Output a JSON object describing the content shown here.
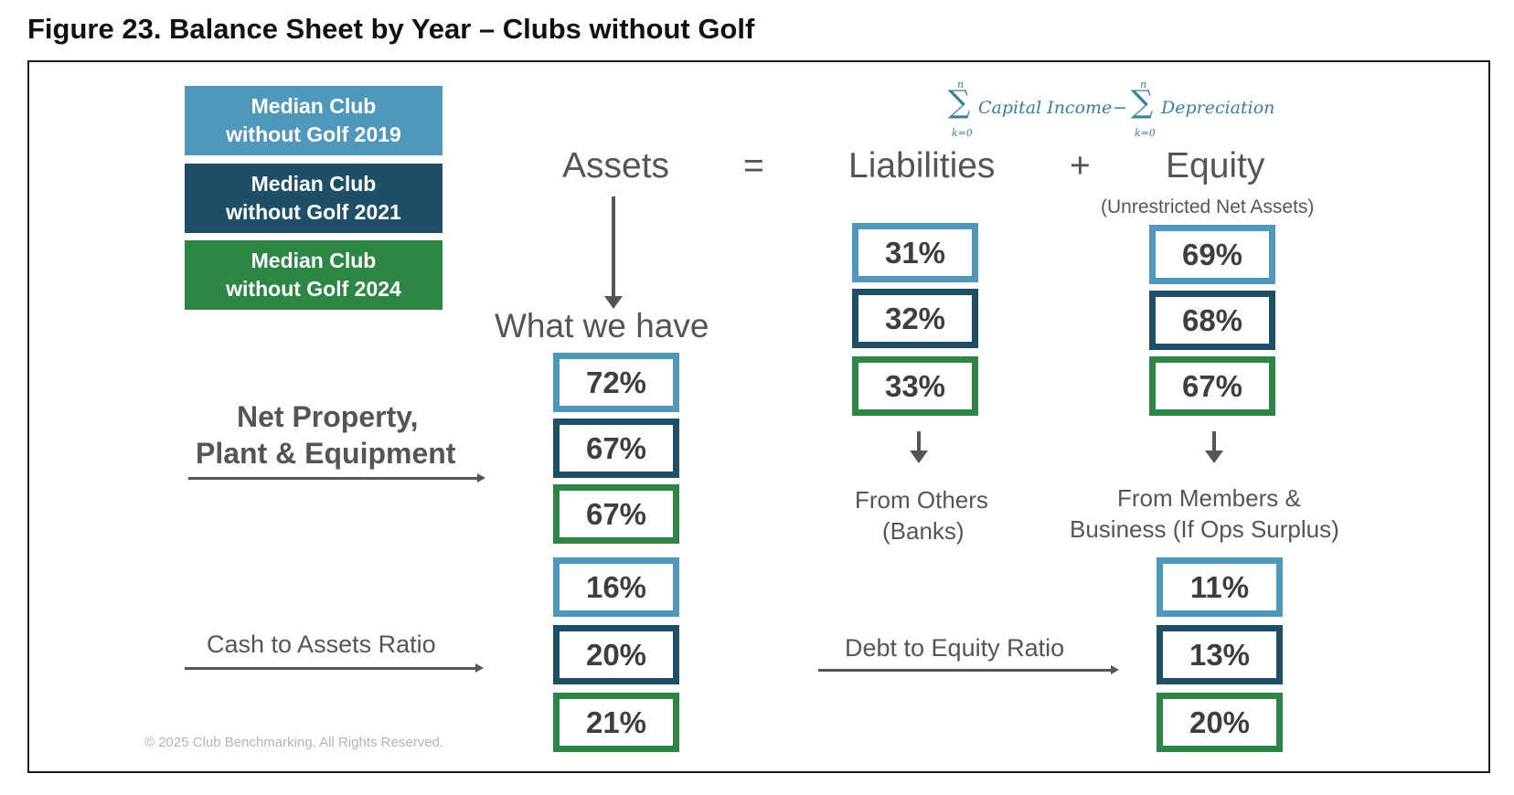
{
  "figure_title": "Figure 23. Balance Sheet by Year – Clubs without Golf",
  "legend": [
    {
      "line1": "Median Club",
      "line2": "without Golf 2019",
      "color": "#4f97bb"
    },
    {
      "line1": "Median Club",
      "line2": "without Golf 2021",
      "color": "#1f4f66"
    },
    {
      "line1": "Median Club",
      "line2": "without Golf 2024",
      "color": "#2e8646"
    }
  ],
  "formula": {
    "sigma": "∑",
    "upper": "n",
    "lower": "k=0",
    "term1": "Capital Income",
    "minus": "−",
    "term2": "Depreciation"
  },
  "equation": {
    "assets": "Assets",
    "equals": "=",
    "liabilities": "Liabilities",
    "plus": "+",
    "equity": "Equity",
    "equity_note": "(Unrestricted Net Assets)"
  },
  "assets_section": {
    "caption": "What we have",
    "ppe_label_line1": "Net Property,",
    "ppe_label_line2": "Plant & Equipment",
    "ppe_values": [
      "72%",
      "67%",
      "67%"
    ],
    "cash_label": "Cash to Assets Ratio",
    "cash_values": [
      "16%",
      "20%",
      "21%"
    ]
  },
  "liabilities_section": {
    "values": [
      "31%",
      "32%",
      "33%"
    ],
    "source_line1": "From Others",
    "source_line2": "(Banks)"
  },
  "equity_section": {
    "values": [
      "69%",
      "68%",
      "67%"
    ],
    "source_line1": "From Members &",
    "source_line2": "Business (If Ops Surplus)",
    "debt_label": "Debt to Equity Ratio",
    "debt_values": [
      "11%",
      "13%",
      "20%"
    ]
  },
  "copyright": "© 2025 Club Benchmarking, All Rights Reserved.",
  "colors": {
    "year_2019": "#4f97bb",
    "year_2021": "#1f4f66",
    "year_2024": "#2e8646",
    "text": "#555555"
  }
}
